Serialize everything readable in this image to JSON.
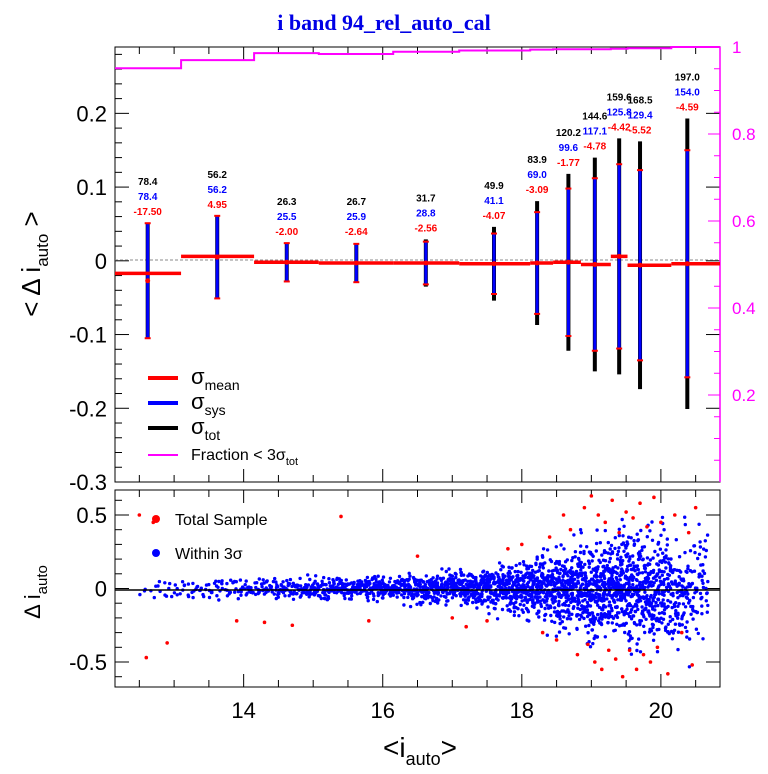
{
  "title": "i band 94_rel_auto_cal",
  "colors": {
    "mean": "#ff0000",
    "sys": "#0000ff",
    "tot": "#000000",
    "fraction": "#ff00ff",
    "title": "#0000e6"
  },
  "chart_data": [
    {
      "type": "line",
      "panel": "top",
      "ylabel": "< Δ i_auto >",
      "ylim": [
        -0.3,
        0.29
      ],
      "yticks": [
        "-0.3",
        "-0.2",
        "-0.1",
        "0",
        "0.1",
        "0.2"
      ],
      "right_axis": {
        "ylim": [
          0.0,
          1.0
        ],
        "ticks": [
          "0.2",
          "0.4",
          "0.6",
          "0.8",
          "1"
        ],
        "color": "#ff00ff"
      },
      "xlim": [
        12.15,
        20.85
      ],
      "legend": {
        "placement": "bottom-left",
        "entries": [
          {
            "main": "σ",
            "sub": "mean"
          },
          {
            "main": "σ",
            "sub": "sys"
          },
          {
            "main": "σ",
            "sub": "tot"
          },
          {
            "main": "Fraction < 3σ",
            "sub": "tot"
          }
        ]
      },
      "bins": [
        {
          "x0": 12.15,
          "x1": 13.1,
          "xc": 12.62,
          "mean": -0.027,
          "mean_line": -0.017,
          "sys_err": 0.078,
          "tot_err": 0.078,
          "labels": [
            "78.4",
            "78.4",
            "-17.50"
          ]
        },
        {
          "x0": 13.1,
          "x1": 14.15,
          "xc": 13.62,
          "mean": 0.005,
          "mean_line": 0.006,
          "sys_err": 0.056,
          "tot_err": 0.056,
          "labels": [
            "56.2",
            "56.2",
            "4.95"
          ]
        },
        {
          "x0": 14.15,
          "x1": 15.08,
          "xc": 14.62,
          "mean": -0.002,
          "mean_line": -0.002,
          "sys_err": 0.026,
          "tot_err": 0.026,
          "labels": [
            "26.3",
            "25.5",
            "-2.00"
          ]
        },
        {
          "x0": 15.08,
          "x1": 16.15,
          "xc": 15.62,
          "mean": -0.003,
          "mean_line": -0.003,
          "sys_err": 0.026,
          "tot_err": 0.027,
          "labels": [
            "26.7",
            "25.9",
            "-2.64"
          ]
        },
        {
          "x0": 16.15,
          "x1": 17.1,
          "xc": 16.62,
          "mean": -0.003,
          "mean_line": -0.003,
          "sys_err": 0.029,
          "tot_err": 0.032,
          "labels": [
            "31.7",
            "28.8",
            "-2.56"
          ]
        },
        {
          "x0": 17.1,
          "x1": 18.12,
          "xc": 17.6,
          "mean": -0.004,
          "mean_line": -0.004,
          "sys_err": 0.041,
          "tot_err": 0.05,
          "labels": [
            "49.9",
            "41.1",
            "-4.07"
          ]
        },
        {
          "x0": 18.12,
          "x1": 18.45,
          "xc": 18.22,
          "mean": -0.003,
          "mean_line": -0.003,
          "sys_err": 0.069,
          "tot_err": 0.084,
          "labels": [
            "83.9",
            "69.0",
            "-3.09"
          ]
        },
        {
          "x0": 18.45,
          "x1": 18.85,
          "xc": 18.67,
          "mean": -0.002,
          "mean_line": -0.002,
          "sys_err": 0.1,
          "tot_err": 0.12,
          "labels": [
            "120.2",
            "99.6",
            "-1.77"
          ]
        },
        {
          "x0": 18.85,
          "x1": 19.28,
          "xc": 19.05,
          "mean": -0.005,
          "mean_line": -0.005,
          "sys_err": 0.117,
          "tot_err": 0.145,
          "labels": [
            "144.6",
            "117.1",
            "-4.78"
          ]
        },
        {
          "x0": 19.28,
          "x1": 19.52,
          "xc": 19.4,
          "mean": 0.006,
          "mean_line": 0.006,
          "sys_err": 0.125,
          "tot_err": 0.16,
          "labels": [
            "159.6",
            "125.8",
            "-4.42"
          ]
        },
        {
          "x0": 19.52,
          "x1": 20.15,
          "xc": 19.7,
          "mean": -0.006,
          "mean_line": -0.006,
          "sys_err": 0.129,
          "tot_err": 0.168,
          "labels": [
            "168.5",
            "129.4",
            "-5.52"
          ]
        },
        {
          "x0": 20.15,
          "x1": 20.85,
          "xc": 20.38,
          "mean": -0.004,
          "mean_line": -0.004,
          "sys_err": 0.154,
          "tot_err": 0.197,
          "labels": [
            "197.0",
            "154.0",
            "-4.59"
          ]
        }
      ],
      "fraction": {
        "x": [
          12.15,
          13.1,
          13.1,
          14.15,
          14.15,
          15.08,
          15.08,
          16.15,
          16.15,
          17.1,
          17.1,
          18.12,
          18.12,
          18.45,
          18.45,
          18.85,
          18.85,
          19.28,
          19.28,
          19.52,
          19.52,
          20.15,
          20.15,
          20.85
        ],
        "y": [
          0.951,
          0.951,
          0.97,
          0.97,
          0.986,
          0.986,
          0.984,
          0.984,
          0.989,
          0.989,
          0.992,
          0.992,
          0.994,
          0.994,
          0.995,
          0.995,
          0.995,
          0.995,
          0.996,
          0.996,
          0.997,
          0.997,
          1.0,
          1.0
        ]
      }
    },
    {
      "type": "scatter",
      "panel": "bottom",
      "xlabel": "<i_auto>",
      "ylabel": "Δ i_auto",
      "xlim": [
        12.15,
        20.85
      ],
      "ylim": [
        -0.67,
        0.67
      ],
      "xticks": [
        "14",
        "16",
        "18",
        "20"
      ],
      "yticks": [
        "-0.5",
        "0",
        "0.5"
      ],
      "legend": {
        "placement": "top-left",
        "entries": [
          "Total Sample",
          "Within 3σ"
        ]
      },
      "series": [
        {
          "name": "Total Sample",
          "color": "#ff0000",
          "points": [
            [
              12.6,
              -0.47
            ],
            [
              12.7,
              0.45
            ],
            [
              12.9,
              -0.37
            ],
            [
              12.5,
              0.5
            ],
            [
              13.9,
              -0.22
            ],
            [
              14.3,
              -0.23
            ],
            [
              14.7,
              -0.25
            ],
            [
              15.4,
              0.49
            ],
            [
              15.8,
              -0.22
            ],
            [
              16.5,
              0.22
            ],
            [
              17.0,
              -0.2
            ],
            [
              17.2,
              -0.26
            ],
            [
              17.5,
              -0.22
            ],
            [
              17.8,
              0.27
            ],
            [
              18.0,
              0.3
            ],
            [
              18.3,
              -0.3
            ],
            [
              18.4,
              0.35
            ],
            [
              18.6,
              0.5
            ],
            [
              18.5,
              -0.35
            ],
            [
              18.7,
              0.4
            ],
            [
              18.8,
              -0.45
            ],
            [
              18.9,
              0.55
            ],
            [
              18.95,
              -0.38
            ],
            [
              19.0,
              0.63
            ],
            [
              19.05,
              -0.5
            ],
            [
              19.1,
              0.5
            ],
            [
              19.15,
              -0.55
            ],
            [
              19.2,
              0.45
            ],
            [
              19.25,
              -0.42
            ],
            [
              19.3,
              0.6
            ],
            [
              19.35,
              -0.48
            ],
            [
              19.4,
              0.38
            ],
            [
              19.45,
              -0.6
            ],
            [
              19.5,
              0.52
            ],
            [
              19.55,
              -0.42
            ],
            [
              19.6,
              0.48
            ],
            [
              19.65,
              -0.55
            ],
            [
              19.7,
              0.58
            ],
            [
              19.75,
              -0.45
            ],
            [
              19.8,
              0.42
            ],
            [
              19.85,
              -0.5
            ],
            [
              19.9,
              0.62
            ],
            [
              19.95,
              -0.4
            ],
            [
              20.0,
              0.45
            ],
            [
              20.1,
              -0.58
            ],
            [
              20.2,
              0.5
            ],
            [
              20.3,
              -0.3
            ],
            [
              20.4,
              0.38
            ],
            [
              20.45,
              -0.52
            ],
            [
              20.5,
              0.55
            ]
          ]
        },
        {
          "name": "Within 3σ",
          "color": "#0000ff",
          "sigma_model": [
            [
              12.5,
              0.04
            ],
            [
              14.0,
              0.03
            ],
            [
              16.0,
              0.035
            ],
            [
              17.0,
              0.05
            ],
            [
              18.0,
              0.085
            ],
            [
              18.5,
              0.115
            ],
            [
              19.0,
              0.15
            ],
            [
              19.5,
              0.17
            ],
            [
              20.0,
              0.185
            ],
            [
              20.5,
              0.2
            ]
          ],
          "density_model": [
            [
              12.5,
              20
            ],
            [
              14.0,
              90
            ],
            [
              15.0,
              180
            ],
            [
              16.0,
              260
            ],
            [
              17.0,
              330
            ],
            [
              18.0,
              480
            ],
            [
              18.5,
              560
            ],
            [
              19.0,
              650
            ],
            [
              19.5,
              700
            ],
            [
              20.0,
              520
            ],
            [
              20.5,
              230
            ]
          ]
        }
      ]
    }
  ]
}
